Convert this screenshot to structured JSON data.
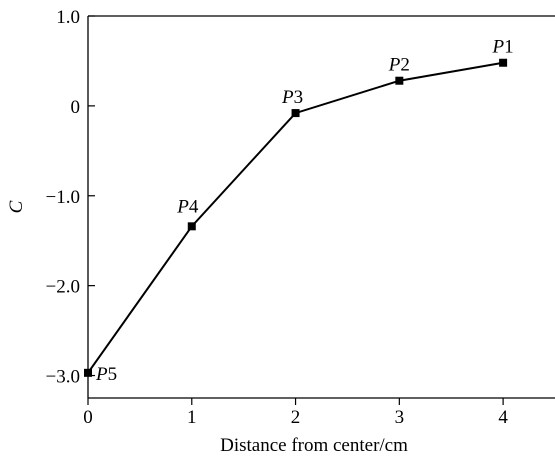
{
  "chart_data": {
    "type": "line",
    "xlabel": "Distance from center/cm",
    "ylabel": "C",
    "xlim": [
      0,
      4.5
    ],
    "ylim": [
      -3.25,
      1.0
    ],
    "x_ticks": [
      0,
      1,
      2,
      3,
      4
    ],
    "x_tick_labels": [
      "0",
      "1",
      "2",
      "3",
      "4"
    ],
    "y_ticks": [
      1.0,
      0,
      -1.0,
      -2.0,
      -3.0
    ],
    "y_tick_labels": [
      "1.0",
      "0",
      "−1.0",
      "−2.0",
      "−3.0"
    ],
    "grid": false,
    "series": [
      {
        "color": "#000000",
        "x": [
          0,
          1,
          2,
          3,
          4
        ],
        "y": [
          -2.97,
          -1.34,
          -0.08,
          0.28,
          0.48
        ],
        "labels": [
          {
            "italic": "P",
            "num": "5"
          },
          {
            "italic": "P",
            "num": "4"
          },
          {
            "italic": "P",
            "num": "3"
          },
          {
            "italic": "P",
            "num": "2"
          },
          {
            "italic": "P",
            "num": "1"
          }
        ]
      }
    ]
  }
}
